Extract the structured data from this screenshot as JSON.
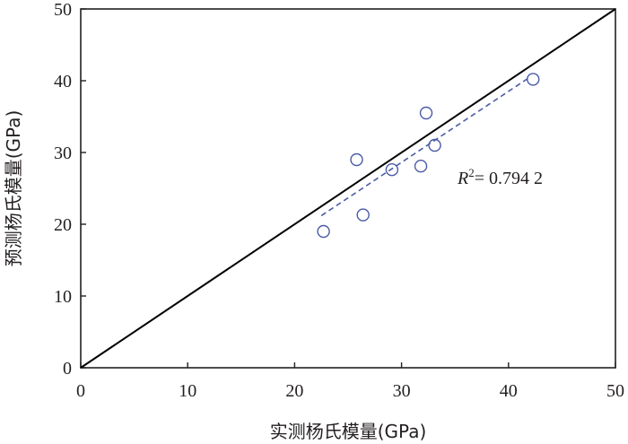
{
  "chart_data": {
    "type": "scatter",
    "xlabel": "实测杨氏模量(GPa)",
    "ylabel": "预测杨氏模量(GPa)",
    "xlim": [
      0,
      50
    ],
    "ylim": [
      0,
      50
    ],
    "xticks": [
      0,
      10,
      20,
      30,
      40,
      50
    ],
    "yticks": [
      0,
      10,
      20,
      30,
      40,
      50
    ],
    "series": [
      {
        "marker": "open-circle",
        "color": "#4a5ba6",
        "points": [
          {
            "x": 22.7,
            "y": 19.0
          },
          {
            "x": 25.8,
            "y": 29.0
          },
          {
            "x": 26.4,
            "y": 21.3
          },
          {
            "x": 29.1,
            "y": 27.6
          },
          {
            "x": 31.8,
            "y": 28.1
          },
          {
            "x": 32.3,
            "y": 35.5
          },
          {
            "x": 33.1,
            "y": 31.0
          },
          {
            "x": 42.3,
            "y": 40.2
          }
        ]
      }
    ],
    "reference_line": {
      "from": [
        0,
        0
      ],
      "to": [
        50,
        50
      ],
      "color": "#000000"
    },
    "fit_line": {
      "from": [
        22.5,
        21.2
      ],
      "to": [
        42.0,
        40.5
      ],
      "color": "#4a5ba6",
      "style": "dashed"
    },
    "annotation": {
      "symbol": "R",
      "superscript": "2",
      "text": "= 0.794 2"
    },
    "grid": false
  }
}
